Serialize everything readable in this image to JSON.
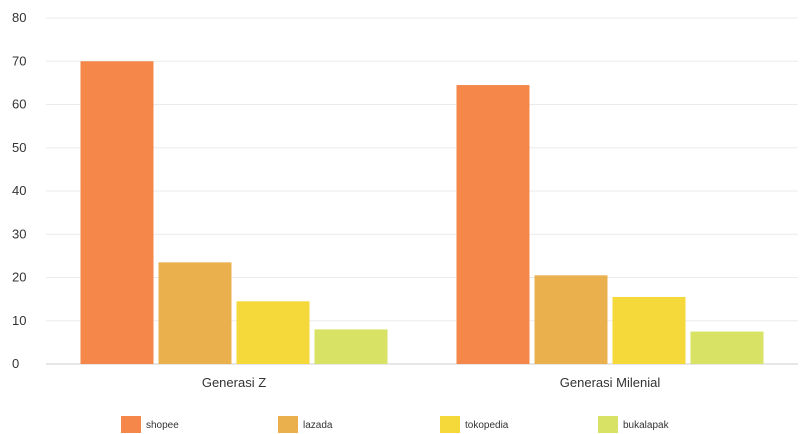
{
  "chart_data": {
    "type": "bar",
    "title": "",
    "xlabel": "",
    "ylabel": "",
    "ylim": [
      0,
      80
    ],
    "yticks": [
      0,
      10,
      20,
      30,
      40,
      50,
      60,
      70,
      80
    ],
    "grid": true,
    "legend_position": "bottom",
    "categories": [
      "Generasi Z",
      "Generasi Milenial"
    ],
    "series": [
      {
        "name": "shopee",
        "color": "#f5874a",
        "values": [
          70,
          64.5
        ]
      },
      {
        "name": "lazada",
        "color": "#e9b04d",
        "values": [
          23.5,
          20.5
        ]
      },
      {
        "name": "tokopedia",
        "color": "#f5d83a",
        "values": [
          14.5,
          15.5
        ]
      },
      {
        "name": "bukalapak",
        "color": "#d8e265",
        "values": [
          8,
          7.5
        ]
      }
    ]
  }
}
